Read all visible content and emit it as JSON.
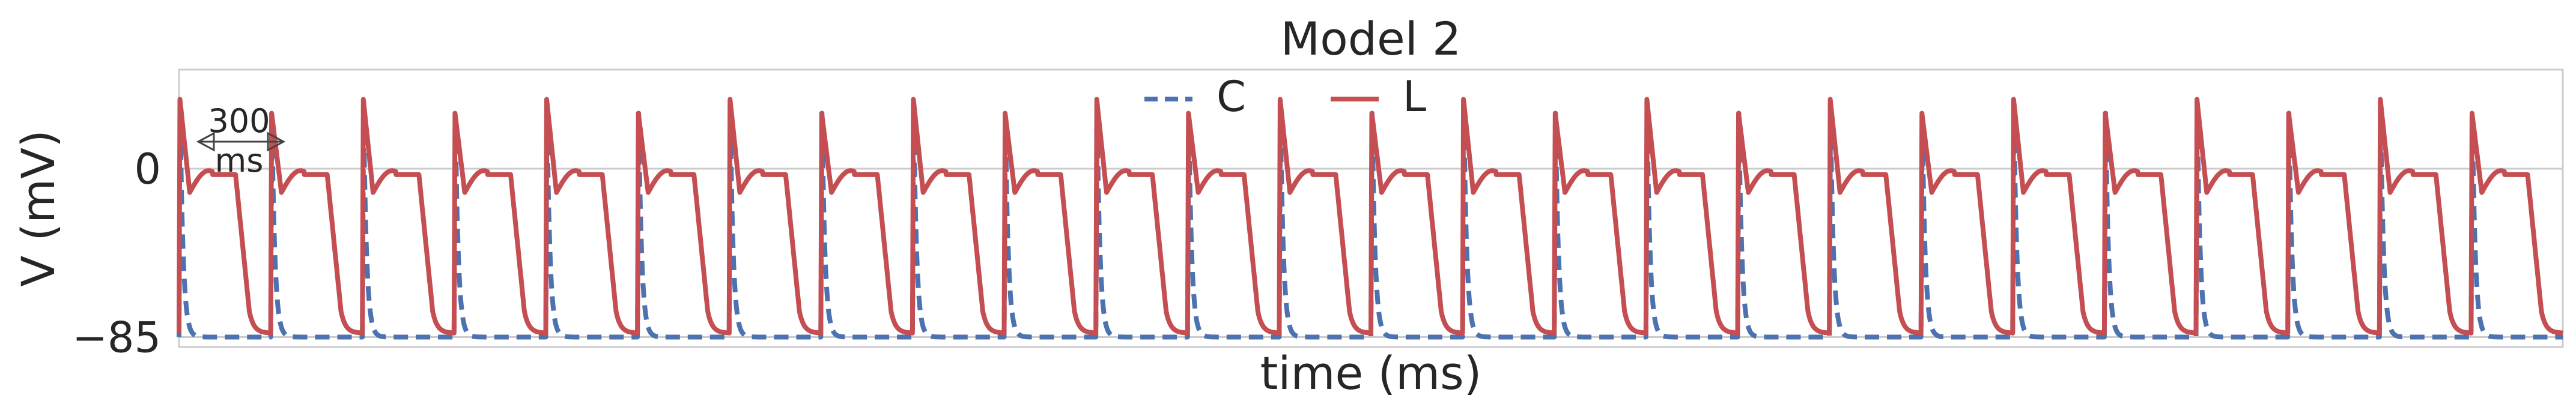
{
  "chart_data": {
    "type": "line",
    "title": "Model 2",
    "xlabel": "time (ms)",
    "ylabel": "V (mV)",
    "ylim": [
      -90,
      50
    ],
    "xlim": [
      0,
      7800
    ],
    "yticks": [
      0,
      -85
    ],
    "xticks": [],
    "grid": true,
    "legend": {
      "position": "top-center",
      "entries": [
        "C",
        "L"
      ]
    },
    "scale_bar": {
      "label": "300 ms",
      "label_line1": "300",
      "label_line2": "ms",
      "length_ms": 300
    },
    "series": [
      {
        "name": "C",
        "color": "#4c72b0",
        "dash": "dashed",
        "beat_times_ms": [
          0,
          300,
          600,
          900,
          1200,
          1500,
          1800,
          2100,
          2400,
          2700,
          3000,
          3300,
          3600,
          3900,
          4200,
          4500,
          4800,
          5100,
          5400,
          5700,
          6000,
          6300,
          6600,
          6900,
          7200,
          7500
        ],
        "beat_peaks_mV": [
          25,
          25,
          28,
          28,
          30,
          28,
          26,
          28,
          28,
          26,
          28,
          26,
          28,
          28,
          30,
          28,
          26,
          28,
          28,
          26,
          28,
          28,
          28,
          28,
          28,
          28
        ],
        "rest_mV": -85
      },
      {
        "name": "L",
        "color": "#c44e52",
        "dash": "solid",
        "beat_times_ms": [
          0,
          300,
          600,
          900,
          1200,
          1500,
          1800,
          2100,
          2400,
          2700,
          3000,
          3300,
          3600,
          3900,
          4200,
          4500,
          4800,
          5100,
          5400,
          5700,
          6000,
          6300,
          6600,
          6900,
          7200,
          7500
        ],
        "beat_peaks_mV": [
          35,
          28,
          35,
          28,
          35,
          28,
          35,
          28,
          35,
          28,
          35,
          28,
          35,
          28,
          35,
          28,
          35,
          28,
          35,
          28,
          35,
          28,
          35,
          28,
          35,
          28
        ],
        "rest_mV": -83
      }
    ]
  }
}
